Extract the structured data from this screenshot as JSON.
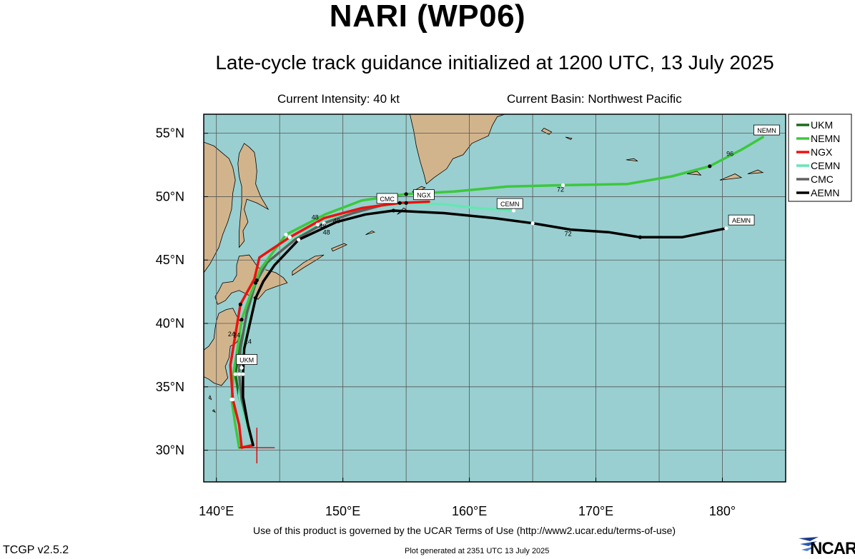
{
  "title": "NARI (WP06)",
  "subtitle": "Late-cycle track guidance initialized at 1200 UTC, 13 July 2025",
  "info": {
    "intensity": "Current Intensity: 40 kt",
    "basin": "Current Basin: Northwest Pacific"
  },
  "map": {
    "projection": "cylindrical",
    "lon_range": [
      139,
      185
    ],
    "lat_range": [
      27.5,
      56.5
    ],
    "grid": true,
    "ocean_color": "#99cfd0",
    "land_color": "#d2b48c",
    "lat_ticks": [
      {
        "value": 55,
        "label": "55°N"
      },
      {
        "value": 50,
        "label": "50°N"
      },
      {
        "value": 45,
        "label": "45°N"
      },
      {
        "value": 40,
        "label": "40°N"
      },
      {
        "value": 35,
        "label": "35°N"
      },
      {
        "value": 30,
        "label": "30°N"
      }
    ],
    "lon_ticks": [
      {
        "value": 140,
        "label": "140°E"
      },
      {
        "value": 150,
        "label": "150°E"
      },
      {
        "value": 160,
        "label": "160°E"
      },
      {
        "value": 170,
        "label": "170°E"
      },
      {
        "value": 180,
        "label": "180°"
      }
    ],
    "current_position": {
      "lon": 143.2,
      "lat": 30.2,
      "marker_color": "#e00000"
    }
  },
  "legend": {
    "position": "right",
    "entries": [
      {
        "name": "UKM",
        "color": "#1a6b1a"
      },
      {
        "name": "NEMN",
        "color": "#3cc83c"
      },
      {
        "name": "NGX",
        "color": "#ee1111"
      },
      {
        "name": "CEMN",
        "color": "#66e6b4"
      },
      {
        "name": "CMC",
        "color": "#606060"
      },
      {
        "name": "AEMN",
        "color": "#000000"
      }
    ]
  },
  "chart_data": {
    "type": "map-tracks",
    "tracks": [
      {
        "name": "UKM",
        "color": "#1a6b1a",
        "points": [
          [
            142.9,
            30.4
          ],
          [
            142.3,
            32.5
          ],
          [
            141.8,
            34.2
          ],
          [
            141.5,
            36
          ],
          [
            141.8,
            37.8
          ],
          [
            142.1,
            39.2
          ]
        ]
      },
      {
        "name": "CEMN",
        "color": "#66e6b4",
        "points": [
          [
            142.9,
            30.4
          ],
          [
            142.2,
            32.6
          ],
          [
            141.8,
            34.3
          ],
          [
            142,
            36.5
          ],
          [
            142.2,
            38.8
          ],
          [
            142.6,
            41.2
          ],
          [
            143.2,
            43.4
          ],
          [
            144,
            44.6
          ],
          [
            145.8,
            46.5
          ],
          [
            148,
            47.8
          ],
          [
            150,
            48.6
          ],
          [
            152.5,
            49.2
          ],
          [
            155,
            49.5
          ],
          [
            158,
            49.4
          ],
          [
            160.5,
            49.1
          ],
          [
            163.5,
            48.9
          ]
        ]
      },
      {
        "name": "CMC",
        "color": "#606060",
        "points": [
          [
            142.9,
            30.4
          ],
          [
            142.5,
            32
          ],
          [
            142,
            34
          ],
          [
            141.8,
            36
          ],
          [
            141.9,
            38
          ],
          [
            142.4,
            40.8
          ],
          [
            143.1,
            43.2
          ],
          [
            144,
            44.8
          ],
          [
            146.2,
            46.6
          ],
          [
            148.5,
            47.9
          ],
          [
            150.8,
            48.7
          ],
          [
            153,
            49.3
          ]
        ]
      },
      {
        "name": "NEMN",
        "color": "#3cc83c",
        "points": [
          [
            142.9,
            30.4
          ],
          [
            141.8,
            30.2
          ],
          [
            141.5,
            32
          ],
          [
            141.2,
            34
          ],
          [
            141.4,
            36.4
          ],
          [
            141.7,
            38.2
          ],
          [
            142,
            40.3
          ],
          [
            142.7,
            42.3
          ],
          [
            143.5,
            44.3
          ],
          [
            145.5,
            47
          ],
          [
            148.6,
            48.6
          ],
          [
            151.5,
            49.7
          ],
          [
            155,
            50.2
          ],
          [
            158.8,
            50.4
          ],
          [
            163,
            50.8
          ],
          [
            167.4,
            50.9
          ],
          [
            172.5,
            51
          ],
          [
            176,
            51.6
          ],
          [
            179,
            52.4
          ],
          [
            181.5,
            53.7
          ],
          [
            183.2,
            54.7
          ]
        ]
      },
      {
        "name": "NGX",
        "color": "#ee1111",
        "points": [
          [
            142.9,
            30.4
          ],
          [
            142,
            30.2
          ],
          [
            141.8,
            32
          ],
          [
            141.3,
            34
          ],
          [
            141.1,
            36.7
          ],
          [
            141.4,
            38.5
          ],
          [
            141.9,
            41.5
          ],
          [
            143,
            43.5
          ],
          [
            143.4,
            45.2
          ],
          [
            145.8,
            46.8
          ],
          [
            148.5,
            48.3
          ],
          [
            151.5,
            49.1
          ],
          [
            154.5,
            49.5
          ],
          [
            156.8,
            49.6
          ]
        ]
      },
      {
        "name": "AEMN",
        "color": "#000000",
        "points": [
          [
            142.9,
            30.4
          ],
          [
            142.5,
            32
          ],
          [
            142.1,
            34.2
          ],
          [
            142.1,
            36
          ],
          [
            142.2,
            38
          ],
          [
            142.6,
            39.8
          ],
          [
            143.1,
            42
          ],
          [
            143.7,
            43.3
          ],
          [
            144.6,
            44.6
          ],
          [
            146.5,
            46.6
          ],
          [
            149.5,
            48
          ],
          [
            151.8,
            48.6
          ],
          [
            154,
            48.9
          ],
          [
            158,
            48.7
          ],
          [
            162,
            48.3
          ],
          [
            165,
            47.9
          ],
          [
            168,
            47.4
          ],
          [
            171,
            47.2
          ],
          [
            173.5,
            46.8
          ],
          [
            176.8,
            46.8
          ],
          [
            178.8,
            47.2
          ],
          [
            180.3,
            47.5
          ]
        ]
      }
    ],
    "track_labels": [
      {
        "text": "UKM",
        "lon": 142.4,
        "lat": 37.1
      },
      {
        "text": "CEMN",
        "lon": 163.2,
        "lat": 49.4
      },
      {
        "text": "CMC",
        "lon": 153.5,
        "lat": 49.8
      },
      {
        "text": "NGX",
        "lon": 156.4,
        "lat": 50.1
      },
      {
        "text": "NEMN",
        "lon": 183.5,
        "lat": 55.2
      },
      {
        "text": "AEMN",
        "lon": 181.5,
        "lat": 48.1
      }
    ],
    "hour_labels": [
      {
        "text": "72",
        "lon": 167.2,
        "lat": 50.4
      },
      {
        "text": "72",
        "lon": 167.8,
        "lat": 46.9
      },
      {
        "text": "96",
        "lon": 180.6,
        "lat": 53.2
      },
      {
        "text": "48",
        "lon": 147.8,
        "lat": 48.2
      },
      {
        "text": "48",
        "lon": 148.4,
        "lat": 47.5
      },
      {
        "text": "48",
        "lon": 148.7,
        "lat": 47.0
      },
      {
        "text": "48",
        "lon": 149.5,
        "lat": 47.9
      },
      {
        "text": "24",
        "lon": 141.2,
        "lat": 39.0
      },
      {
        "text": "24",
        "lon": 141.6,
        "lat": 38.9
      },
      {
        "text": "24",
        "lon": 142.5,
        "lat": 38.4
      }
    ]
  },
  "footer": {
    "terms": "Use of this product is governed by the UCAR Terms of Use (http://www2.ucar.edu/terms-of-use)",
    "version": "TCGP v2.5.2",
    "generated": "Plot generated at 2351 UTC   13 July 2025",
    "logo": "NCAR"
  }
}
